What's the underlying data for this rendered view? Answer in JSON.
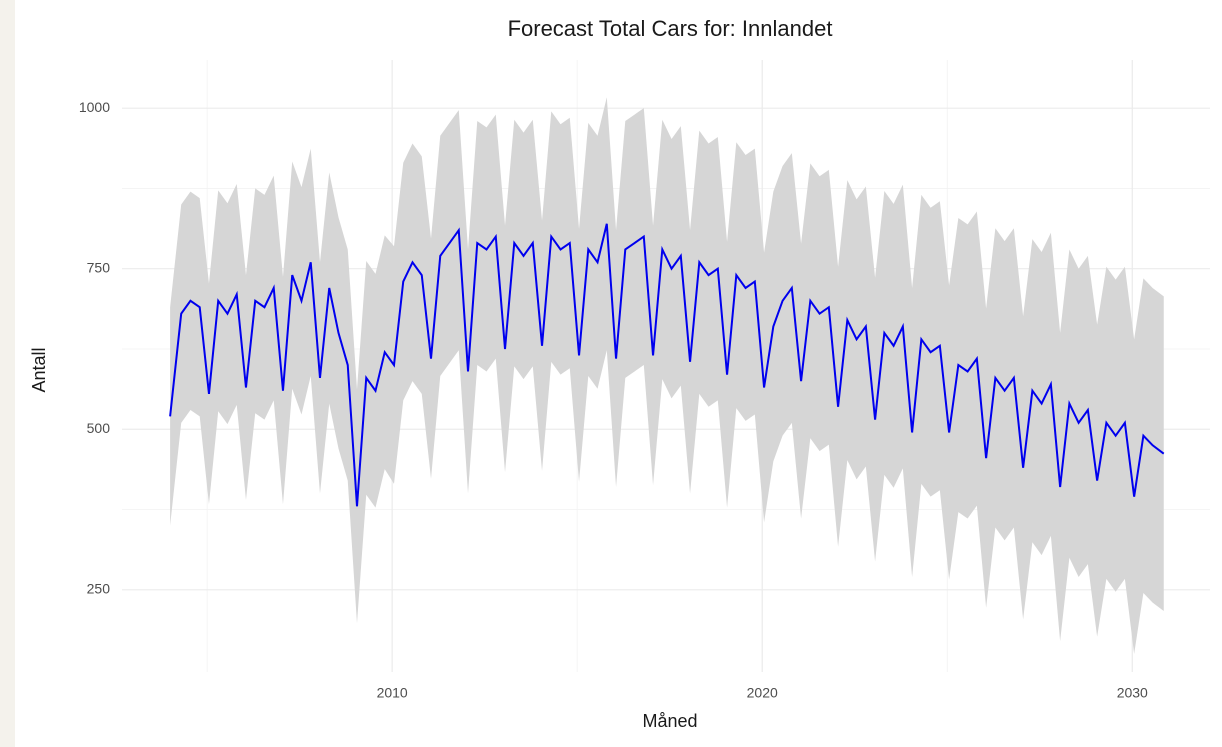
{
  "chart_data": {
    "type": "line_band",
    "title": "Forecast Total Cars for: Innlandet",
    "xlabel": "Måned",
    "ylabel": "Antall",
    "line_color": "#0000ee",
    "band_color": "#d6d6d6",
    "grid": true,
    "xlim": [
      2002.7,
      2032.1
    ],
    "ylim": [
      122,
      1075
    ],
    "xticks": [
      2010,
      2020,
      2030
    ],
    "xminorticks": [
      2005,
      2015,
      2025
    ],
    "yticks": [
      250,
      500,
      750,
      1000
    ],
    "yminorticks": [
      375,
      625,
      875
    ],
    "x": [
      2004.0,
      2004.3,
      2004.55,
      2004.8,
      2005.05,
      2005.3,
      2005.55,
      2005.8,
      2006.05,
      2006.3,
      2006.55,
      2006.8,
      2007.05,
      2007.3,
      2007.55,
      2007.8,
      2008.05,
      2008.3,
      2008.55,
      2008.8,
      2009.05,
      2009.3,
      2009.55,
      2009.8,
      2010.05,
      2010.3,
      2010.55,
      2010.8,
      2011.05,
      2011.3,
      2011.55,
      2011.8,
      2012.05,
      2012.3,
      2012.55,
      2012.8,
      2013.05,
      2013.3,
      2013.55,
      2013.8,
      2014.05,
      2014.3,
      2014.55,
      2014.8,
      2015.05,
      2015.3,
      2015.55,
      2015.8,
      2016.05,
      2016.3,
      2016.55,
      2016.8,
      2017.05,
      2017.3,
      2017.55,
      2017.8,
      2018.05,
      2018.3,
      2018.55,
      2018.8,
      2019.05,
      2019.3,
      2019.55,
      2019.8,
      2020.05,
      2020.3,
      2020.55,
      2020.8,
      2021.05,
      2021.3,
      2021.55,
      2021.8,
      2022.05,
      2022.3,
      2022.55,
      2022.8,
      2023.05,
      2023.3,
      2023.55,
      2023.8,
      2024.05,
      2024.3,
      2024.55,
      2024.8,
      2025.05,
      2025.3,
      2025.55,
      2025.8,
      2026.05,
      2026.3,
      2026.55,
      2026.8,
      2027.05,
      2027.3,
      2027.55,
      2027.8,
      2028.05,
      2028.3,
      2028.55,
      2028.8,
      2029.05,
      2029.3,
      2029.55,
      2029.8,
      2030.05,
      2030.3,
      2030.55,
      2030.85
    ],
    "values": [
      520,
      680,
      700,
      690,
      555,
      700,
      680,
      710,
      565,
      700,
      690,
      720,
      560,
      740,
      700,
      760,
      580,
      720,
      650,
      600,
      380,
      580,
      560,
      620,
      600,
      730,
      760,
      740,
      610,
      770,
      790,
      810,
      590,
      790,
      780,
      800,
      625,
      790,
      770,
      790,
      630,
      800,
      780,
      790,
      615,
      780,
      760,
      820,
      610,
      780,
      790,
      800,
      615,
      780,
      750,
      770,
      605,
      760,
      740,
      750,
      585,
      740,
      720,
      730,
      565,
      660,
      700,
      720,
      575,
      700,
      680,
      690,
      535,
      670,
      640,
      660,
      515,
      650,
      630,
      660,
      495,
      640,
      620,
      630,
      495,
      600,
      590,
      610,
      455,
      580,
      560,
      580,
      440,
      560,
      540,
      570,
      410,
      540,
      510,
      530,
      420,
      510,
      490,
      510,
      395,
      490,
      475,
      462
    ],
    "lower": [
      350,
      510,
      530,
      520,
      383,
      528,
      508,
      538,
      390,
      525,
      515,
      545,
      383,
      563,
      523,
      583,
      400,
      540,
      470,
      420,
      198,
      398,
      378,
      438,
      415,
      545,
      575,
      555,
      423,
      583,
      603,
      623,
      400,
      600,
      590,
      610,
      433,
      598,
      578,
      598,
      435,
      605,
      585,
      595,
      418,
      583,
      563,
      623,
      410,
      580,
      590,
      600,
      413,
      578,
      548,
      568,
      400,
      555,
      535,
      545,
      378,
      533,
      513,
      523,
      355,
      450,
      490,
      510,
      361,
      486,
      466,
      476,
      317,
      452,
      422,
      442,
      294,
      429,
      409,
      439,
      270,
      415,
      395,
      405,
      266,
      371,
      361,
      381,
      222,
      347,
      327,
      347,
      204,
      324,
      304,
      334,
      170,
      300,
      270,
      290,
      177,
      267,
      247,
      267,
      150,
      245,
      230,
      217
    ],
    "upper": [
      690,
      850,
      870,
      860,
      727,
      872,
      852,
      882,
      740,
      875,
      865,
      895,
      737,
      917,
      877,
      937,
      760,
      900,
      830,
      780,
      562,
      762,
      742,
      802,
      785,
      915,
      945,
      925,
      797,
      957,
      977,
      997,
      780,
      980,
      970,
      990,
      817,
      982,
      962,
      982,
      825,
      995,
      975,
      985,
      812,
      977,
      957,
      1017,
      810,
      980,
      990,
      1000,
      817,
      982,
      952,
      972,
      810,
      965,
      945,
      955,
      792,
      947,
      927,
      937,
      775,
      870,
      910,
      930,
      789,
      914,
      894,
      904,
      753,
      888,
      858,
      878,
      736,
      871,
      851,
      881,
      720,
      865,
      845,
      855,
      724,
      829,
      819,
      839,
      688,
      813,
      793,
      813,
      676,
      796,
      776,
      806,
      650,
      780,
      750,
      770,
      663,
      753,
      733,
      753,
      640,
      735,
      720,
      707
    ]
  }
}
